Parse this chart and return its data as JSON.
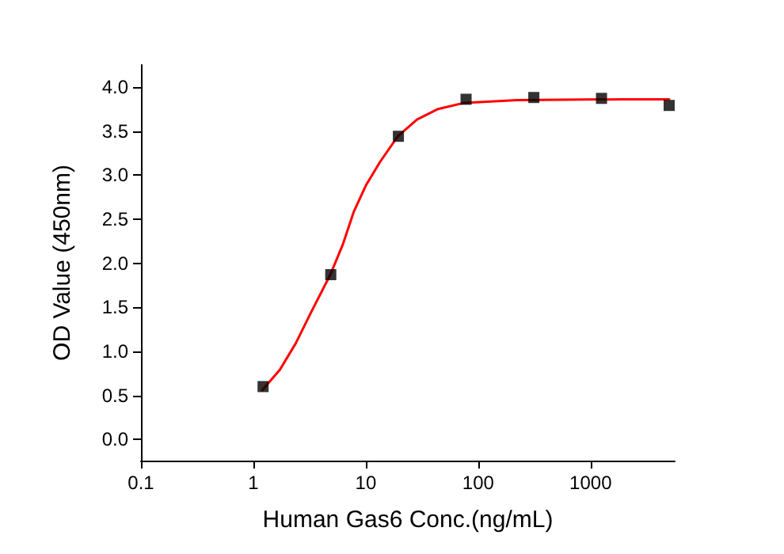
{
  "chart_data": {
    "type": "scatter",
    "xlabel": "Human Gas6 Conc.(ng/mL)",
    "ylabel": "OD Value (450nm)",
    "log": "x",
    "grid": false,
    "xlim": [
      0.1,
      5600
    ],
    "xticks": [
      0.1,
      1,
      10,
      100,
      1000
    ],
    "ylim": [
      -0.24,
      4.25
    ],
    "yticks": [
      {
        "value": 0,
        "label": "0.0"
      },
      {
        "value": 0.5,
        "label": "0.5"
      },
      {
        "value": 1,
        "label": "1.0"
      },
      {
        "value": 1.5,
        "label": "1.5"
      },
      {
        "value": 2,
        "label": "2.0"
      },
      {
        "value": 2.5,
        "label": "2.5"
      },
      {
        "value": 3,
        "label": "3.0"
      },
      {
        "value": 3.5,
        "label": "3.5"
      },
      {
        "value": 4,
        "label": "4.0"
      }
    ],
    "series": [
      {
        "type": "line",
        "color": "#ff0000",
        "marker": "none",
        "line_style": "solid",
        "x": [
          1.2,
          1.72,
          2.38,
          3.28,
          4.84,
          6.28,
          7.8,
          10,
          13.4,
          19.3,
          28.5,
          44,
          75.5,
          222,
          1930,
          5000
        ],
        "values": [
          0.56,
          0.79,
          1.09,
          1.45,
          1.87,
          2.22,
          2.58,
          2.88,
          3.15,
          3.44,
          3.63,
          3.75,
          3.82,
          3.85,
          3.86,
          3.86
        ]
      },
      {
        "color": "#000000",
        "marker": "square",
        "x": [
          1.22,
          4.88,
          19.5,
          78,
          312.5,
          1250,
          5000
        ],
        "values": [
          0.6,
          1.87,
          3.44,
          3.86,
          3.88,
          3.87,
          3.79
        ]
      }
    ]
  }
}
